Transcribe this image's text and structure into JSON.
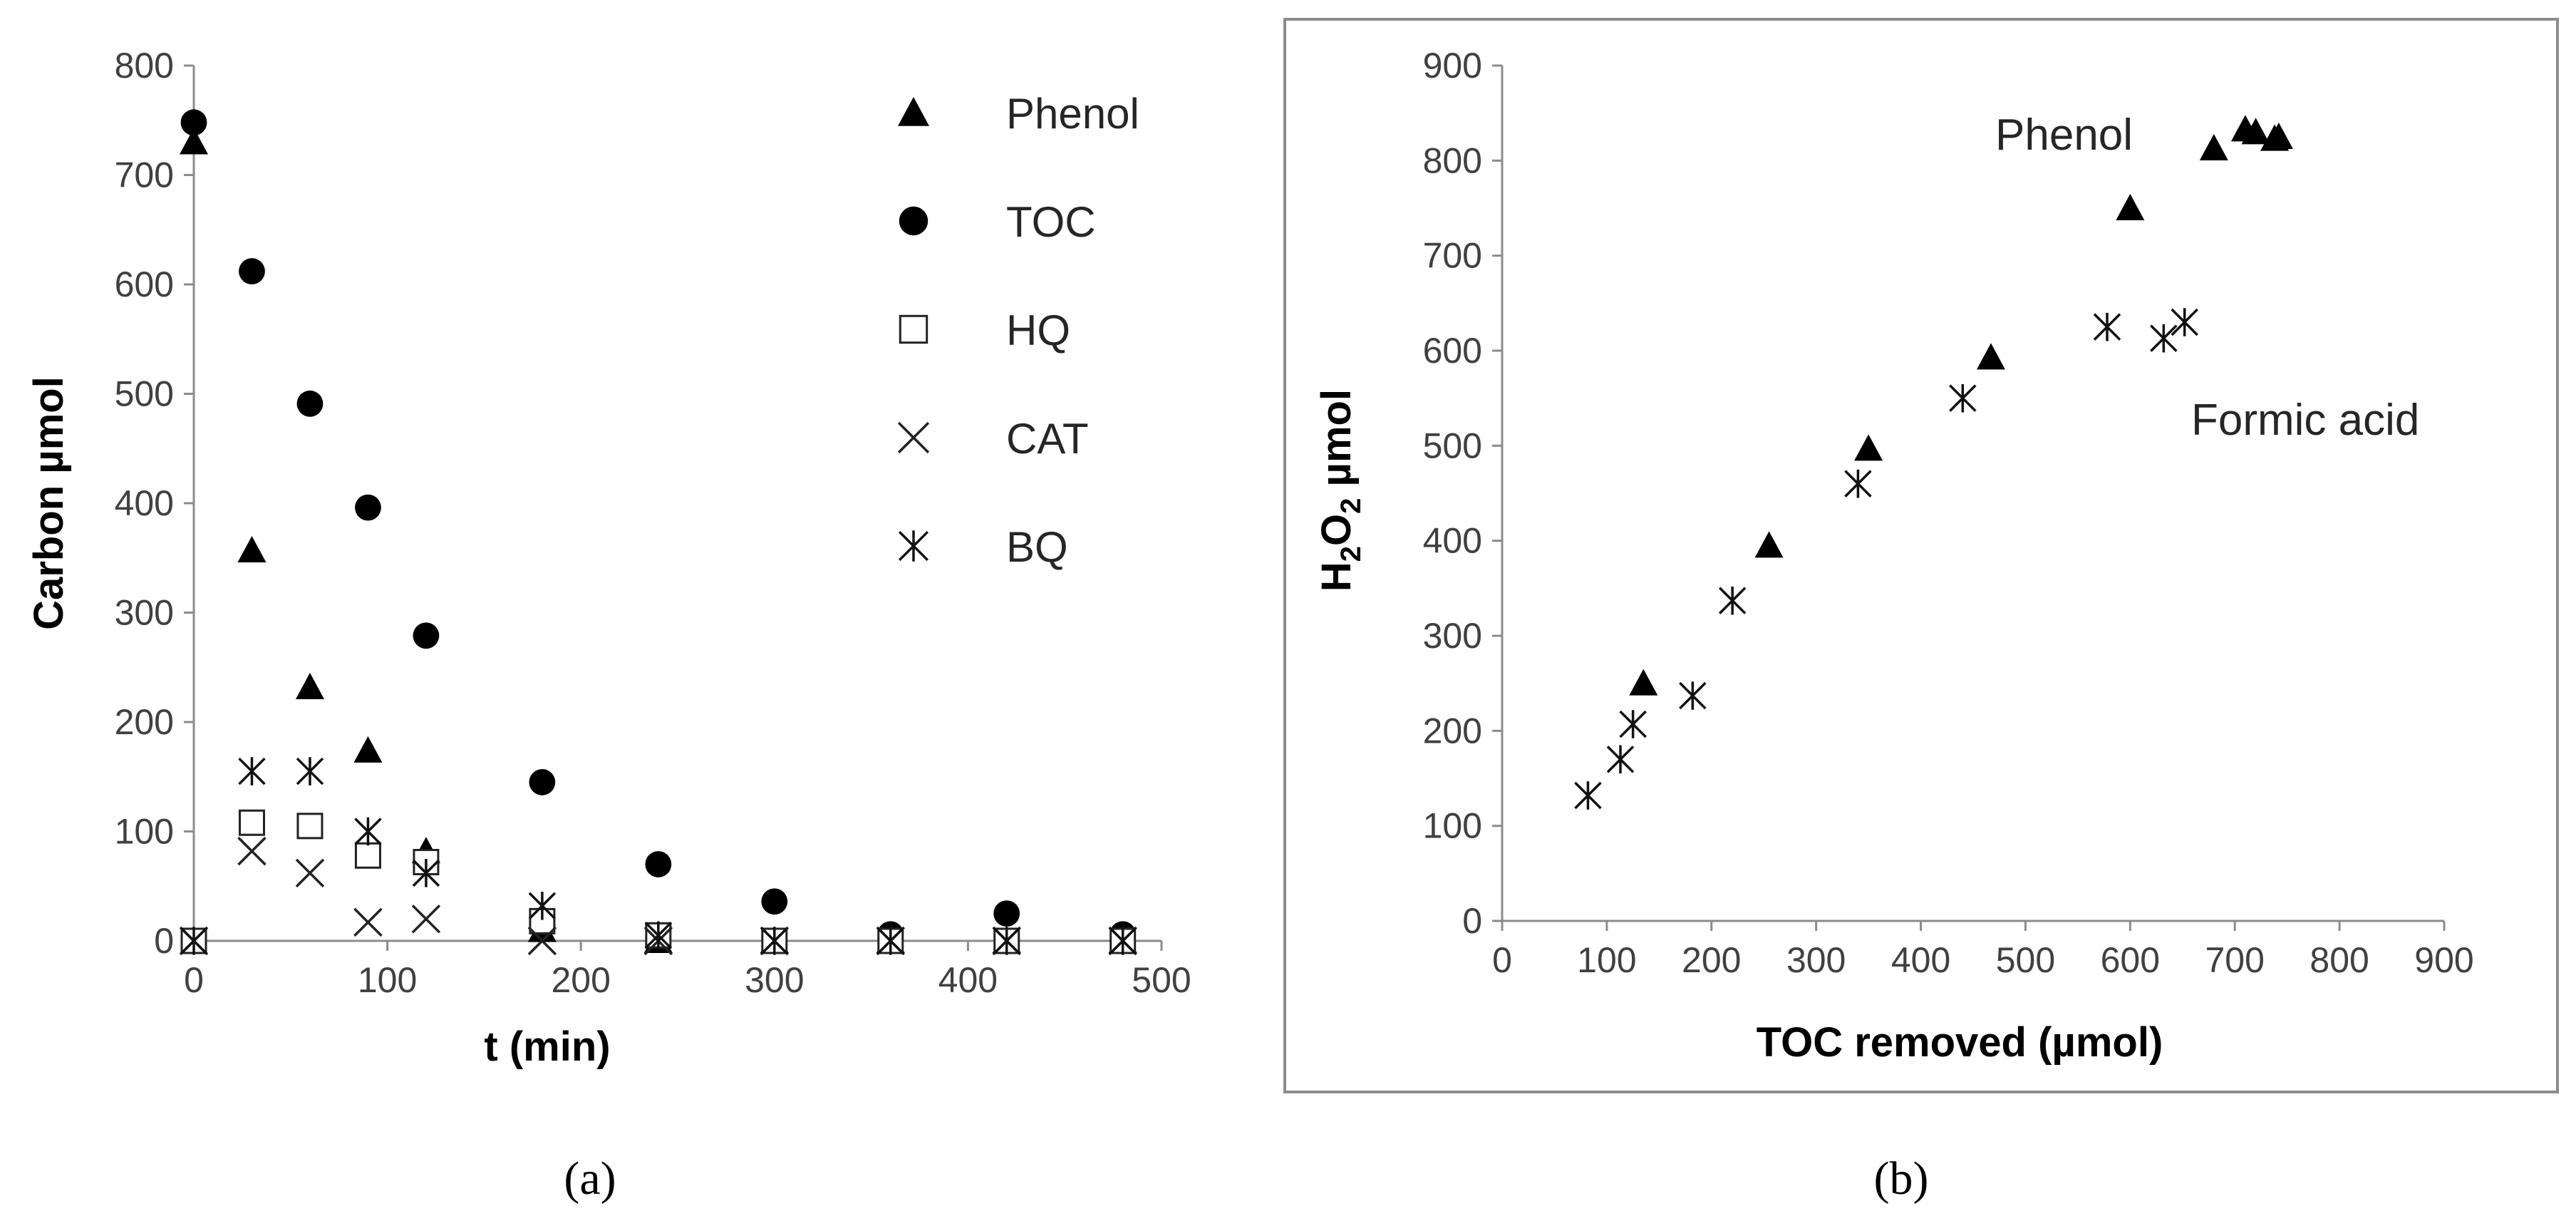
{
  "chart_data": [
    {
      "type": "scatter",
      "xlabel": "t (min)",
      "ylabel": "Carbon µmol",
      "xlim": [
        0,
        500
      ],
      "ylim": [
        0,
        800
      ],
      "xticks": [
        "0",
        "100",
        "200",
        "300",
        "400",
        "500"
      ],
      "yticks": [
        "0",
        "100",
        "200",
        "300",
        "400",
        "500",
        "600",
        "700",
        "800"
      ],
      "grid": false,
      "legend": "top-right",
      "caption": "(a)",
      "series": [
        {
          "name": "Phenol",
          "marker": "triangle",
          "x": [
            0,
            30,
            60,
            90,
            120,
            180,
            240,
            300,
            360,
            420,
            480
          ],
          "y": [
            730,
            357,
            232,
            174,
            82,
            10,
            0,
            0,
            0,
            0,
            0
          ]
        },
        {
          "name": "TOC",
          "marker": "circle",
          "x": [
            0,
            30,
            60,
            90,
            120,
            180,
            240,
            300,
            360,
            420,
            480
          ],
          "y": [
            748,
            612,
            491,
            396,
            279,
            145,
            70,
            36,
            6,
            25,
            6
          ]
        },
        {
          "name": "HQ",
          "marker": "square",
          "x": [
            0,
            30,
            60,
            90,
            120,
            180,
            240,
            300,
            360,
            420,
            480
          ],
          "y": [
            0,
            108,
            105,
            78,
            72,
            18,
            5,
            0,
            0,
            0,
            0
          ]
        },
        {
          "name": "CAT",
          "marker": "x",
          "x": [
            0,
            30,
            60,
            90,
            120,
            180,
            240,
            300,
            360,
            420,
            480
          ],
          "y": [
            0,
            82,
            62,
            17,
            20,
            0,
            0,
            0,
            0,
            0,
            0
          ]
        },
        {
          "name": "BQ",
          "marker": "asterisk",
          "x": [
            0,
            30,
            60,
            90,
            120,
            180,
            240,
            300,
            360,
            420,
            480
          ],
          "y": [
            0,
            155,
            155,
            100,
            62,
            32,
            5,
            0,
            0,
            0,
            0
          ]
        }
      ]
    },
    {
      "type": "scatter",
      "xlabel": "TOC removed (µmol)",
      "ylabel_main": "H",
      "ylabel_sub1": "2",
      "ylabel_mid": "O",
      "ylabel_sub2": "2",
      "ylabel_end": " µmol",
      "xlim": [
        0,
        900
      ],
      "ylim": [
        0,
        900
      ],
      "xticks": [
        "0",
        "100",
        "200",
        "300",
        "400",
        "500",
        "600",
        "700",
        "800",
        "900"
      ],
      "yticks": [
        "0",
        "100",
        "200",
        "300",
        "400",
        "500",
        "600",
        "700",
        "800",
        "900"
      ],
      "grid": false,
      "caption": "(b)",
      "annotations": [
        "Phenol",
        "Formic acid"
      ],
      "series": [
        {
          "name": "Phenol",
          "marker": "triangle",
          "x": [
            135,
            255,
            350,
            467,
            600,
            680,
            710,
            720,
            738,
            742
          ],
          "y": [
            250,
            395,
            497,
            593,
            750,
            813,
            833,
            830,
            823,
            825
          ]
        },
        {
          "name": "Formic acid",
          "marker": "asterisk",
          "x": [
            82,
            113,
            125,
            182,
            220,
            340,
            440,
            578,
            632,
            652
          ],
          "y": [
            132,
            170,
            207,
            237,
            337,
            460,
            550,
            625,
            613,
            630
          ]
        }
      ]
    }
  ]
}
